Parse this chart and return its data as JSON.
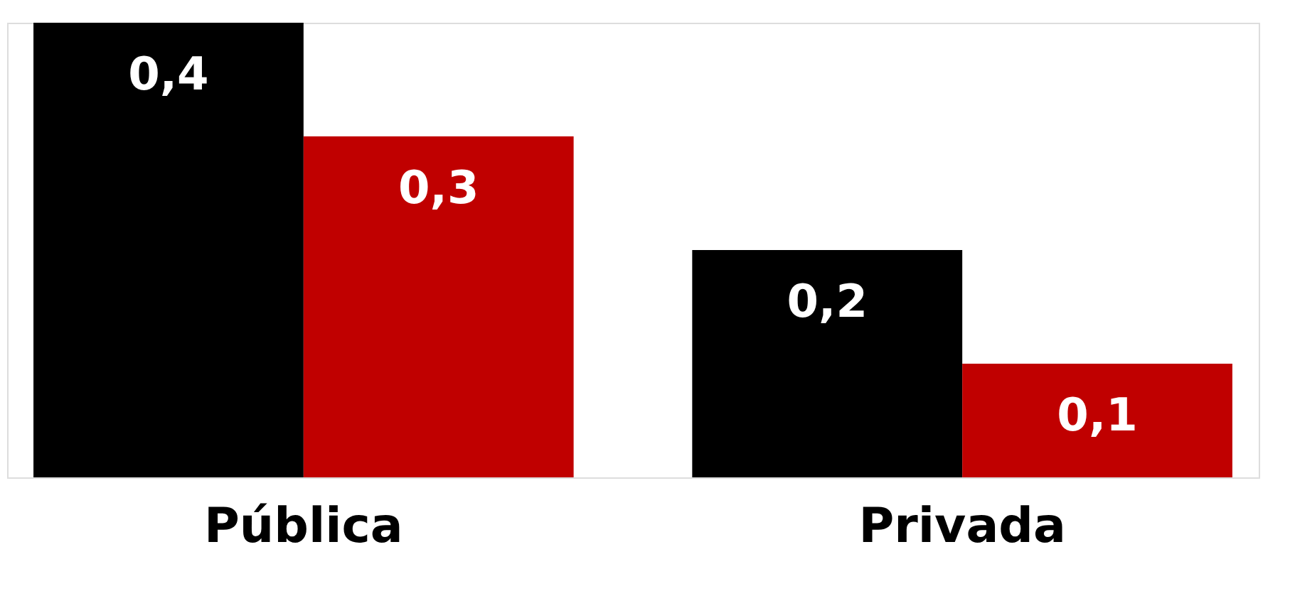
{
  "chart_data": {
    "type": "bar",
    "categories": [
      "Pública",
      "Privada"
    ],
    "series": [
      {
        "color": "#000000",
        "values": [
          0.4,
          0.2
        ],
        "value_labels": [
          "0,4",
          "0,2"
        ]
      },
      {
        "color": "#c00000",
        "values": [
          0.3,
          0.1
        ],
        "value_labels": [
          "0,3",
          "0,1"
        ]
      }
    ]
  }
}
